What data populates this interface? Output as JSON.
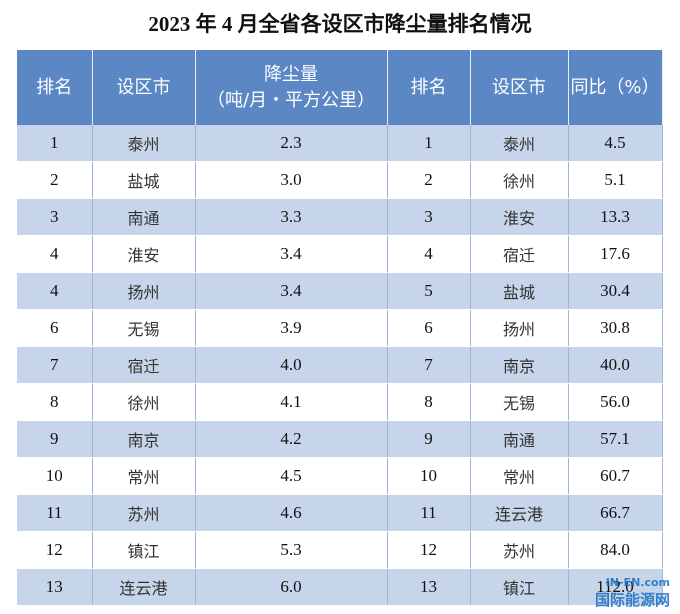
{
  "title": "2023 年 4 月全省各设区市降尘量排名情况",
  "table": {
    "header": [
      "排名",
      "设区市",
      [
        "降尘量",
        "（吨/月・平方公里）"
      ],
      "排名",
      "设区市",
      "同比（%）"
    ],
    "rows": [
      [
        "1",
        "泰州",
        "2.3",
        "1",
        "泰州",
        "4.5"
      ],
      [
        "2",
        "盐城",
        "3.0",
        "2",
        "徐州",
        "5.1"
      ],
      [
        "3",
        "南通",
        "3.3",
        "3",
        "淮安",
        "13.3"
      ],
      [
        "4",
        "淮安",
        "3.4",
        "4",
        "宿迁",
        "17.6"
      ],
      [
        "4",
        "扬州",
        "3.4",
        "5",
        "盐城",
        "30.4"
      ],
      [
        "6",
        "无锡",
        "3.9",
        "6",
        "扬州",
        "30.8"
      ],
      [
        "7",
        "宿迁",
        "4.0",
        "7",
        "南京",
        "40.0"
      ],
      [
        "8",
        "徐州",
        "4.1",
        "8",
        "无锡",
        "56.0"
      ],
      [
        "9",
        "南京",
        "4.2",
        "9",
        "南通",
        "57.1"
      ],
      [
        "10",
        "常州",
        "4.5",
        "10",
        "常州",
        "60.7"
      ],
      [
        "11",
        "苏州",
        "4.6",
        "11",
        "连云港",
        "66.7"
      ],
      [
        "12",
        "镇江",
        "5.3",
        "12",
        "苏州",
        "84.0"
      ],
      [
        "13",
        "连云港",
        "6.0",
        "13",
        "镇江",
        "112.0"
      ]
    ]
  },
  "watermark": [
    "IN-EN.com",
    "国际能源网"
  ]
}
